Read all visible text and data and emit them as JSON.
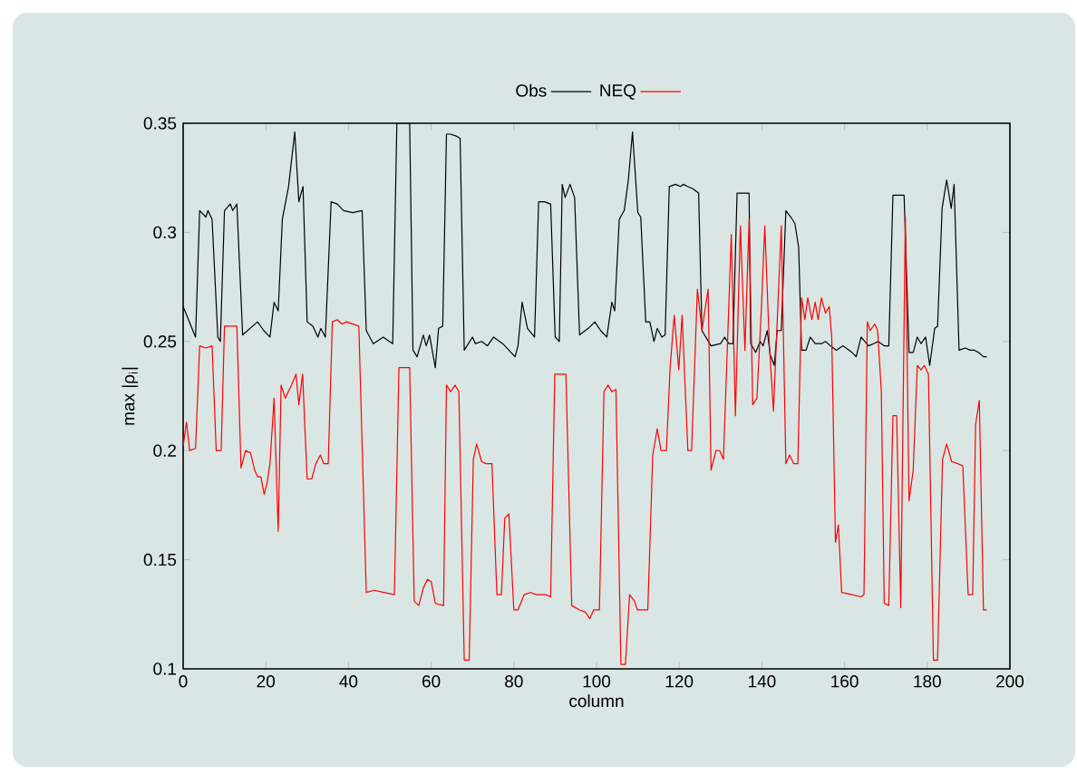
{
  "chart_data": {
    "type": "line",
    "xlabel": "column",
    "ylabel": "max |ρ$_{i}$|",
    "xlim": [
      0,
      200
    ],
    "ylim": [
      0.1,
      0.35
    ],
    "xticks": [
      0,
      20,
      40,
      60,
      80,
      100,
      120,
      140,
      160,
      180,
      200
    ],
    "yticks": [
      0.1,
      0.15,
      0.2,
      0.25,
      0.3,
      0.35
    ],
    "legend": "top",
    "grid": false,
    "marker": "none",
    "line_style": "solid",
    "series": [
      {
        "name": "Obs",
        "color": "#000000",
        "x": [
          0,
          3,
          4,
          5.5,
          6,
          7,
          8.4,
          9,
          10,
          11.4,
          12,
          13,
          14.4,
          18,
          19.5,
          21,
          22,
          23,
          24,
          25.5,
          27,
          28,
          29,
          30,
          31.4,
          32.6,
          33.3,
          34.4,
          35.8,
          37.3,
          38.8,
          41,
          43.3,
          44.3,
          46,
          48.4,
          50.7,
          51.7,
          54.8,
          55.6,
          56.6,
          58.1,
          58.8,
          59.6,
          61,
          61.8,
          62.8,
          63.7,
          64.7,
          66.2,
          67,
          68,
          70,
          70.7,
          72.2,
          73.6,
          75.1,
          77.3,
          80.3,
          81,
          82,
          83.3,
          85,
          86,
          87.4,
          88.9,
          90,
          91,
          91.7,
          92.4,
          93.6,
          94.7,
          95.9,
          98,
          99.6,
          101,
          102.5,
          103.7,
          104.4,
          105.5,
          106.7,
          107.7,
          108.7,
          110,
          110.7,
          111.9,
          112.9,
          113.9,
          114.7,
          115.8,
          116.6,
          117.6,
          119.1,
          120.3,
          121,
          122,
          123.3,
          124.7,
          125.5,
          127.7,
          130,
          131,
          132,
          133,
          134,
          136.9,
          137.3,
          138.5,
          139.6,
          140.3,
          141.3,
          142,
          143,
          143.7,
          144.7,
          145.8,
          147,
          148,
          148.9,
          149.6,
          150.7,
          151.7,
          152.9,
          154.4,
          155.4,
          156.6,
          158,
          159.6,
          161.8,
          162.8,
          164,
          165.8,
          167,
          168.1,
          169.6,
          170.7,
          171.7,
          174.4,
          175.6,
          176.6,
          177.6,
          178.5,
          179.6,
          180.6,
          181.8,
          182.5,
          183.6,
          184.7,
          185.8,
          186.5,
          187.7,
          189.2,
          190.4,
          191.4,
          192.4,
          193.6,
          194.4
        ],
        "values": [
          0.266,
          0.252,
          0.31,
          0.307,
          0.31,
          0.306,
          0.252,
          0.25,
          0.31,
          0.313,
          0.31,
          0.313,
          0.253,
          0.259,
          0.255,
          0.252,
          0.268,
          0.264,
          0.306,
          0.321,
          0.346,
          0.314,
          0.321,
          0.259,
          0.257,
          0.252,
          0.256,
          0.252,
          0.314,
          0.313,
          0.31,
          0.309,
          0.31,
          0.255,
          0.249,
          0.252,
          0.249,
          0.35,
          0.35,
          0.246,
          0.243,
          0.253,
          0.248,
          0.253,
          0.238,
          0.256,
          0.257,
          0.345,
          0.345,
          0.344,
          0.343,
          0.246,
          0.252,
          0.249,
          0.25,
          0.248,
          0.252,
          0.249,
          0.243,
          0.248,
          0.268,
          0.256,
          0.252,
          0.314,
          0.314,
          0.313,
          0.252,
          0.25,
          0.322,
          0.316,
          0.322,
          0.316,
          0.253,
          0.256,
          0.259,
          0.255,
          0.252,
          0.268,
          0.264,
          0.306,
          0.31,
          0.324,
          0.346,
          0.309,
          0.307,
          0.259,
          0.259,
          0.25,
          0.256,
          0.252,
          0.253,
          0.321,
          0.322,
          0.321,
          0.322,
          0.321,
          0.32,
          0.318,
          0.255,
          0.248,
          0.249,
          0.252,
          0.249,
          0.249,
          0.318,
          0.318,
          0.249,
          0.245,
          0.25,
          0.248,
          0.255,
          0.244,
          0.239,
          0.255,
          0.255,
          0.31,
          0.307,
          0.304,
          0.293,
          0.246,
          0.246,
          0.252,
          0.249,
          0.249,
          0.25,
          0.248,
          0.246,
          0.248,
          0.245,
          0.243,
          0.252,
          0.248,
          0.249,
          0.25,
          0.248,
          0.248,
          0.317,
          0.317,
          0.245,
          0.245,
          0.252,
          0.249,
          0.252,
          0.239,
          0.256,
          0.257,
          0.311,
          0.324,
          0.311,
          0.322,
          0.246,
          0.247,
          0.246,
          0.246,
          0.245,
          0.243,
          0.243
        ]
      },
      {
        "name": "NEQ",
        "color": "#ff0000",
        "x": [
          0,
          0.8,
          1.6,
          3,
          4,
          5.5,
          7,
          8,
          9.2,
          10,
          13,
          14,
          15.1,
          16.3,
          17.3,
          18,
          18.8,
          19.6,
          20.3,
          21,
          22,
          23,
          23.7,
          24.7,
          26.2,
          27.3,
          28,
          28.9,
          30,
          31.1,
          32.1,
          33.2,
          34,
          35.1,
          36.1,
          37.3,
          38.4,
          39.5,
          42.5,
          44.3,
          46.2,
          48.5,
          51.1,
          52.2,
          54.8,
          55.9,
          57,
          58.1,
          59.1,
          60,
          61,
          63,
          63.7,
          64.7,
          65.8,
          66.7,
          68,
          69.2,
          70.2,
          71,
          72.2,
          73.3,
          74.7,
          75.9,
          77,
          77.8,
          78.8,
          80,
          81,
          82.5,
          84,
          85.5,
          87.7,
          88.9,
          89.9,
          92.6,
          94,
          95.9,
          97.3,
          98.4,
          99.3,
          100.7,
          101.8,
          102.8,
          103.7,
          104.7,
          105.9,
          107,
          108,
          109.2,
          109.9,
          111.4,
          112.4,
          113.6,
          114.7,
          115.6,
          116.9,
          117.8,
          118.8,
          119.9,
          120.7,
          122.1,
          123,
          124.4,
          125.5,
          127,
          127.7,
          128.9,
          129.8,
          130.7,
          132.6,
          133.6,
          134.8,
          135.9,
          136.9,
          137.8,
          138.8,
          139.9,
          140.7,
          141.8,
          142.8,
          143.7,
          144.7,
          145.8,
          146.7,
          147.7,
          148.7,
          149.6,
          150.4,
          151.1,
          152.1,
          152.9,
          153.6,
          154.4,
          155.4,
          156.3,
          156.9,
          157.8,
          158.5,
          159.3,
          161.8,
          164,
          164.7,
          165.5,
          166.2,
          167.3,
          168,
          168.9,
          169.6,
          170.7,
          171.7,
          172.6,
          173.6,
          174.7,
          175.6,
          176.6,
          177.6,
          178.5,
          179.3,
          180.3,
          181.5,
          182.5,
          183.7,
          184.7,
          185.9,
          187.4,
          188.6,
          189.9,
          191,
          191.7,
          192.6,
          193.6,
          194.4
        ],
        "values": [
          0.202,
          0.213,
          0.2,
          0.201,
          0.248,
          0.247,
          0.248,
          0.2,
          0.2,
          0.257,
          0.257,
          0.192,
          0.2,
          0.199,
          0.191,
          0.188,
          0.188,
          0.18,
          0.185,
          0.194,
          0.224,
          0.163,
          0.23,
          0.224,
          0.23,
          0.235,
          0.221,
          0.235,
          0.187,
          0.187,
          0.194,
          0.198,
          0.194,
          0.194,
          0.259,
          0.26,
          0.258,
          0.259,
          0.257,
          0.135,
          0.136,
          0.135,
          0.134,
          0.238,
          0.238,
          0.131,
          0.129,
          0.137,
          0.141,
          0.14,
          0.13,
          0.129,
          0.23,
          0.227,
          0.23,
          0.227,
          0.104,
          0.104,
          0.196,
          0.203,
          0.195,
          0.194,
          0.194,
          0.134,
          0.134,
          0.169,
          0.171,
          0.127,
          0.127,
          0.134,
          0.135,
          0.134,
          0.134,
          0.133,
          0.235,
          0.235,
          0.129,
          0.127,
          0.126,
          0.123,
          0.127,
          0.127,
          0.227,
          0.23,
          0.227,
          0.228,
          0.102,
          0.102,
          0.134,
          0.131,
          0.127,
          0.127,
          0.127,
          0.198,
          0.21,
          0.2,
          0.2,
          0.238,
          0.262,
          0.237,
          0.262,
          0.2,
          0.2,
          0.274,
          0.255,
          0.274,
          0.191,
          0.2,
          0.2,
          0.196,
          0.299,
          0.216,
          0.303,
          0.246,
          0.306,
          0.221,
          0.224,
          0.266,
          0.303,
          0.249,
          0.218,
          0.259,
          0.303,
          0.194,
          0.198,
          0.194,
          0.194,
          0.27,
          0.26,
          0.27,
          0.26,
          0.268,
          0.26,
          0.27,
          0.263,
          0.266,
          0.252,
          0.158,
          0.166,
          0.135,
          0.134,
          0.133,
          0.134,
          0.259,
          0.255,
          0.258,
          0.255,
          0.227,
          0.13,
          0.129,
          0.216,
          0.216,
          0.128,
          0.307,
          0.177,
          0.191,
          0.239,
          0.237,
          0.239,
          0.235,
          0.104,
          0.104,
          0.196,
          0.203,
          0.195,
          0.194,
          0.193,
          0.134,
          0.134,
          0.212,
          0.223,
          0.127,
          0.127
        ]
      }
    ]
  }
}
